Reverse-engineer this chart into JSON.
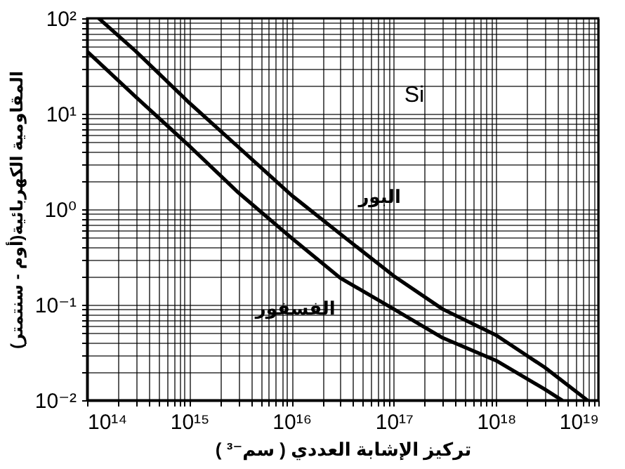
{
  "chart_data": {
    "type": "line",
    "xlabel": "تركيز الإشابة العددي ( سم⁻³ )",
    "ylabel": "المقاومية الكهربائية(أوم - سنتمتر)",
    "annotations": [
      "Si"
    ],
    "log": "xy",
    "grid": true,
    "line_style": "solid",
    "marker": "none",
    "xlim": [
      100000000000000.0,
      1e+19
    ],
    "ylim": [
      0.01,
      100
    ],
    "xticks": [
      {
        "value": 100000000000000.0,
        "label": "10¹⁴"
      },
      {
        "value": 200000000000000.0,
        "label": null
      },
      {
        "value": 300000000000000.0,
        "label": null
      },
      {
        "value": 400000000000000.0,
        "label": null
      },
      {
        "value": 500000000000000.0,
        "label": null
      },
      {
        "value": 600000000000000.0,
        "label": null
      },
      {
        "value": 700000000000000.0,
        "label": null
      },
      {
        "value": 800000000000000.0,
        "label": null
      },
      {
        "value": 900000000000000.0,
        "label": null
      },
      {
        "value": 1000000000000000.0,
        "label": "10¹⁵"
      },
      {
        "value": 2000000000000000.0,
        "label": null
      },
      {
        "value": 3000000000000000.0,
        "label": null
      },
      {
        "value": 4000000000000000.0,
        "label": null
      },
      {
        "value": 5000000000000000.0,
        "label": null
      },
      {
        "value": 6000000000000000.0,
        "label": null
      },
      {
        "value": 7000000000000000.0,
        "label": null
      },
      {
        "value": 8000000000000000.0,
        "label": null
      },
      {
        "value": 9000000000000000.0,
        "label": null
      },
      {
        "value": 1e+16,
        "label": "10¹⁶"
      },
      {
        "value": 2e+16,
        "label": null
      },
      {
        "value": 3e+16,
        "label": null
      },
      {
        "value": 4e+16,
        "label": null
      },
      {
        "value": 5e+16,
        "label": null
      },
      {
        "value": 6e+16,
        "label": null
      },
      {
        "value": 7e+16,
        "label": null
      },
      {
        "value": 8e+16,
        "label": null
      },
      {
        "value": 9e+16,
        "label": null
      },
      {
        "value": 1e+17,
        "label": "10¹⁷"
      },
      {
        "value": 2e+17,
        "label": null
      },
      {
        "value": 3e+17,
        "label": null
      },
      {
        "value": 4e+17,
        "label": null
      },
      {
        "value": 5e+17,
        "label": null
      },
      {
        "value": 6e+17,
        "label": null
      },
      {
        "value": 7e+17,
        "label": null
      },
      {
        "value": 8e+17,
        "label": null
      },
      {
        "value": 9e+17,
        "label": null
      },
      {
        "value": 1e+18,
        "label": "10¹⁸"
      },
      {
        "value": 2e+18,
        "label": null
      },
      {
        "value": 3e+18,
        "label": null
      },
      {
        "value": 4e+18,
        "label": null
      },
      {
        "value": 5e+18,
        "label": null
      },
      {
        "value": 6e+18,
        "label": null
      },
      {
        "value": 7e+18,
        "label": null
      },
      {
        "value": 8e+18,
        "label": null
      },
      {
        "value": 9e+18,
        "label": null
      },
      {
        "value": 1e+19,
        "label": "10¹⁹"
      }
    ],
    "yticks": [
      {
        "value": 0.01,
        "label": "10⁻²"
      },
      {
        "value": 0.02,
        "label": null
      },
      {
        "value": 0.03,
        "label": null
      },
      {
        "value": 0.04,
        "label": null
      },
      {
        "value": 0.05,
        "label": null
      },
      {
        "value": 0.06,
        "label": null
      },
      {
        "value": 0.07,
        "label": null
      },
      {
        "value": 0.08,
        "label": null
      },
      {
        "value": 0.09,
        "label": null
      },
      {
        "value": 0.1,
        "label": "10⁻¹"
      },
      {
        "value": 0.2,
        "label": null
      },
      {
        "value": 0.3,
        "label": null
      },
      {
        "value": 0.4,
        "label": null
      },
      {
        "value": 0.5,
        "label": null
      },
      {
        "value": 0.6,
        "label": null
      },
      {
        "value": 0.7,
        "label": null
      },
      {
        "value": 0.8,
        "label": null
      },
      {
        "value": 0.9,
        "label": null
      },
      {
        "value": 1,
        "label": "10⁰"
      },
      {
        "value": 2,
        "label": null
      },
      {
        "value": 3,
        "label": null
      },
      {
        "value": 4,
        "label": null
      },
      {
        "value": 5,
        "label": null
      },
      {
        "value": 6,
        "label": null
      },
      {
        "value": 7,
        "label": null
      },
      {
        "value": 8,
        "label": null
      },
      {
        "value": 9,
        "label": null
      },
      {
        "value": 10,
        "label": "10¹"
      },
      {
        "value": 20,
        "label": null
      },
      {
        "value": 30,
        "label": null
      },
      {
        "value": 40,
        "label": null
      },
      {
        "value": 50,
        "label": null
      },
      {
        "value": 60,
        "label": null
      },
      {
        "value": 70,
        "label": null
      },
      {
        "value": 80,
        "label": null
      },
      {
        "value": 90,
        "label": null
      },
      {
        "value": 100,
        "label": "10²"
      }
    ],
    "series": [
      {
        "name": "البور",
        "color": "#000000",
        "x": [
          130000000000000.0,
          300000000000000.0,
          1000000000000000.0,
          3000000000000000.0,
          1e+16,
          3e+16,
          1e+17,
          3e+17,
          1e+18,
          3e+18,
          7.8e+18
        ],
        "values": [
          100,
          45,
          13,
          4.5,
          1.4,
          0.55,
          0.2,
          0.09,
          0.048,
          0.022,
          0.01
        ]
      },
      {
        "name": "الفسفور",
        "color": "#000000",
        "x": [
          100000000000000.0,
          300000000000000.0,
          1000000000000000.0,
          3000000000000000.0,
          1e+16,
          3e+16,
          1e+17,
          3e+17,
          1e+18,
          3e+18,
          4.4e+18
        ],
        "values": [
          45,
          15,
          4.6,
          1.5,
          0.5,
          0.19,
          0.09,
          0.045,
          0.026,
          0.013,
          0.01
        ]
      }
    ]
  }
}
